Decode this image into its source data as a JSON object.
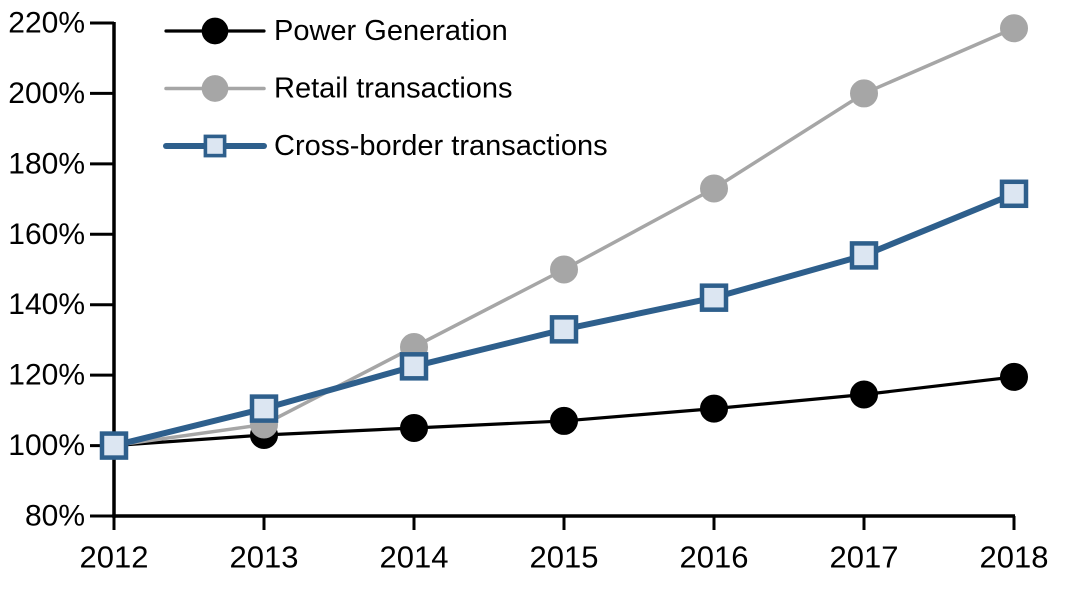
{
  "chart_data": {
    "type": "line",
    "title": "",
    "xlabel": "",
    "ylabel": "",
    "x": [
      "2012",
      "2013",
      "2014",
      "2015",
      "2016",
      "2017",
      "2018"
    ],
    "ylim": [
      80,
      220
    ],
    "y_tick_step": 20,
    "y_tick_labels": [
      "80%",
      "100%",
      "120%",
      "140%",
      "160%",
      "180%",
      "200%",
      "220%"
    ],
    "y_tick_values": [
      80,
      100,
      120,
      140,
      160,
      180,
      200,
      220
    ],
    "grid": false,
    "legend_position": "top-left-inside",
    "axis_color": "#000000",
    "background_color": "#ffffff",
    "series": [
      {
        "name": "Power Generation",
        "values": [
          100,
          103,
          105,
          107,
          110.5,
          114.5,
          119.5
        ],
        "color": "#000000",
        "marker": "circle",
        "marker_fill": "#000000",
        "line_width": 3.2
      },
      {
        "name": "Retail transactions",
        "values": [
          100,
          106,
          128,
          150,
          173,
          200,
          218.5
        ],
        "color": "#A6A6A6",
        "marker": "circle",
        "marker_fill": "#A6A6A6",
        "line_width": 3.5
      },
      {
        "name": "Cross-border transactions",
        "values": [
          100,
          110.5,
          122.5,
          133,
          142,
          154,
          171.5
        ],
        "color": "#2E5F8C",
        "marker": "square",
        "marker_fill": "#DCE6F2",
        "line_width": 6
      }
    ]
  }
}
